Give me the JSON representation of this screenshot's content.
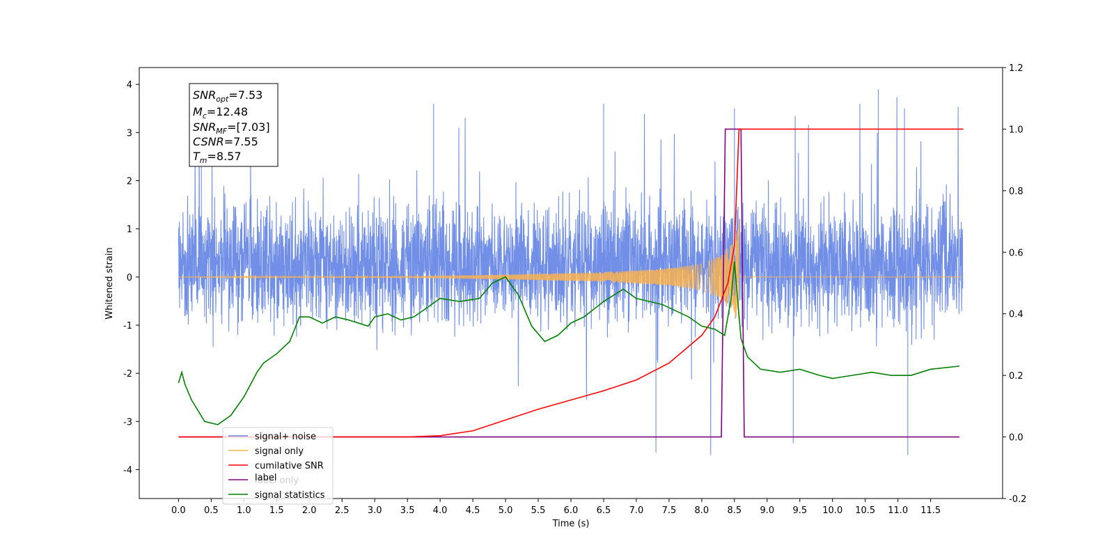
{
  "chart_data": {
    "type": "line",
    "xlabel": "Time (s)",
    "ylabel": "Whitened strain",
    "xlim": [
      -0.6,
      12.6
    ],
    "ylim": [
      -4.6,
      4.35
    ],
    "y2lim": [
      -0.2,
      1.2
    ],
    "grid": false,
    "legend_position": "lower-left",
    "x_ticks": [
      "0.0",
      "0.5",
      "1.0",
      "1.5",
      "2.0",
      "2.5",
      "3.0",
      "3.5",
      "4.0",
      "4.5",
      "5.0",
      "5.5",
      "6.0",
      "6.5",
      "7.0",
      "7.5",
      "8.0",
      "8.5",
      "9.0",
      "9.5",
      "10.0",
      "10.5",
      "11.0",
      "11.5"
    ],
    "y_ticks": [
      "4",
      "3",
      "2",
      "1",
      "0",
      "-1",
      "-2",
      "-3",
      "-4"
    ],
    "y2_ticks": [
      "1.2",
      "1.0",
      "0.8",
      "0.6",
      "0.4",
      "0.2",
      "0.0",
      "-0.2"
    ],
    "legend": [
      "signal+ noise",
      "signal only",
      "cumilative SNR",
      "label",
      "label only",
      "signal statistics"
    ],
    "info_box": {
      "snr_opt_base": "SNR",
      "snr_opt_sub": "opt",
      "snr_opt_value": "=7.53",
      "mc_base": "M",
      "mc_sub": "c",
      "mc_value": "=12.48",
      "snr_mf_base": "SNR",
      "snr_mf_sub": "MF",
      "snr_mf_value": "=[7.03]",
      "csnr_label": "CSNR",
      "csnr_value": "=7.55",
      "tm_base": "T",
      "tm_sub": "m",
      "tm_value": "=8.57"
    },
    "series": [
      {
        "name": "signal+ noise",
        "color": "#6a89e6",
        "axis": "left",
        "description": "noisy whitened strain, roughly N(0, 0.9) with excursions to ±3.9",
        "t_start": 0.0,
        "t_end": 11.99,
        "envelope_typical": [
          -1.6,
          2.4
        ],
        "extremes": [
          [
            0.35,
            3.3
          ],
          [
            3.9,
            3.6
          ],
          [
            6.5,
            3.6
          ],
          [
            8.5,
            3.5
          ],
          [
            10.7,
            3.9
          ],
          [
            11.1,
            3.5
          ],
          [
            11.15,
            -3.7
          ],
          [
            9.4,
            -3.45
          ],
          [
            7.3,
            -3.65
          ]
        ]
      },
      {
        "name": "signal only",
        "color": "#ffb347",
        "axis": "left",
        "description": "chirp signal, amplitude growing toward merger at 8.57 s",
        "t_start": 0.0,
        "t_end": 11.99,
        "t_merger": 8.57,
        "amplitude": [
          [
            0.0,
            0.0
          ],
          [
            3.5,
            0.02
          ],
          [
            5.0,
            0.05
          ],
          [
            6.5,
            0.1
          ],
          [
            7.5,
            0.18
          ],
          [
            8.0,
            0.28
          ],
          [
            8.3,
            0.45
          ],
          [
            8.5,
            0.75
          ],
          [
            8.57,
            1.2
          ],
          [
            8.6,
            0.0
          ]
        ]
      },
      {
        "name": "cumilative SNR",
        "color": "#ff0000",
        "axis": "right",
        "x": [
          0.0,
          3.0,
          3.5,
          4.0,
          4.5,
          5.0,
          5.5,
          6.0,
          6.5,
          7.0,
          7.5,
          8.0,
          8.2,
          8.4,
          8.5,
          8.57,
          12.0
        ],
        "y": [
          0.0,
          0.0,
          0.0,
          0.004,
          0.02,
          0.055,
          0.09,
          0.12,
          0.15,
          0.185,
          0.24,
          0.33,
          0.39,
          0.5,
          0.62,
          1.0,
          1.0
        ]
      },
      {
        "name": "label",
        "color": "#800080",
        "axis": "right",
        "x": [
          0.0,
          8.3,
          8.36,
          8.6,
          8.65,
          11.94
        ],
        "y": [
          0.0,
          0.0,
          1.0,
          1.0,
          0.0,
          0.0
        ]
      },
      {
        "name": "signal statistics",
        "color": "#008000",
        "axis": "right",
        "x": [
          0.0,
          0.05,
          0.1,
          0.2,
          0.4,
          0.6,
          0.8,
          1.0,
          1.2,
          1.3,
          1.5,
          1.7,
          1.85,
          2.0,
          2.2,
          2.4,
          2.6,
          2.9,
          3.0,
          3.2,
          3.4,
          3.6,
          3.8,
          4.0,
          4.3,
          4.6,
          4.8,
          5.0,
          5.2,
          5.4,
          5.6,
          5.8,
          6.0,
          6.2,
          6.5,
          6.8,
          7.0,
          7.2,
          7.4,
          7.6,
          7.8,
          8.0,
          8.2,
          8.35,
          8.45,
          8.5,
          8.6,
          8.7,
          8.9,
          9.2,
          9.5,
          9.8,
          10.0,
          10.3,
          10.6,
          10.9,
          11.2,
          11.5,
          11.94
        ],
        "y": [
          0.175,
          0.21,
          0.17,
          0.12,
          0.05,
          0.04,
          0.07,
          0.13,
          0.21,
          0.24,
          0.27,
          0.31,
          0.39,
          0.39,
          0.37,
          0.39,
          0.38,
          0.36,
          0.39,
          0.4,
          0.38,
          0.39,
          0.42,
          0.45,
          0.44,
          0.45,
          0.5,
          0.52,
          0.46,
          0.36,
          0.31,
          0.33,
          0.37,
          0.39,
          0.44,
          0.48,
          0.45,
          0.44,
          0.43,
          0.41,
          0.39,
          0.36,
          0.35,
          0.33,
          0.45,
          0.57,
          0.32,
          0.26,
          0.22,
          0.21,
          0.22,
          0.2,
          0.19,
          0.2,
          0.21,
          0.2,
          0.2,
          0.22,
          0.23
        ]
      }
    ]
  }
}
